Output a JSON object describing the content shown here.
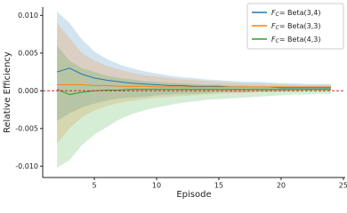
{
  "chart_data": {
    "type": "line",
    "xlabel": "Episode",
    "ylabel": "Relative Efficiency",
    "x": [
      2,
      3,
      4,
      5,
      6,
      7,
      8,
      9,
      10,
      11,
      12,
      13,
      14,
      15,
      16,
      17,
      18,
      19,
      20,
      21,
      22,
      23,
      24
    ],
    "series": [
      {
        "name": "FC= Beta(3,4)",
        "color": "#1f77b4",
        "values": [
          0.0025,
          0.003,
          0.0022,
          0.0017,
          0.0014,
          0.0012,
          0.001,
          0.0009,
          0.0008,
          0.0007,
          0.0007,
          0.0006,
          0.0006,
          0.0006,
          0.0005,
          0.0005,
          0.0005,
          0.0005,
          0.0004,
          0.0004,
          0.0004,
          0.0004,
          0.0004
        ],
        "upper": [
          0.0105,
          0.009,
          0.0068,
          0.0052,
          0.0042,
          0.0035,
          0.003,
          0.0026,
          0.0023,
          0.002,
          0.0018,
          0.0017,
          0.0015,
          0.0014,
          0.0013,
          0.0012,
          0.0012,
          0.0011,
          0.001,
          0.001,
          0.0009,
          0.0009,
          0.0009
        ],
        "lower": [
          -0.004,
          -0.003,
          -0.0022,
          -0.0017,
          -0.0013,
          -0.001,
          -0.0009,
          -0.0008,
          -0.0006,
          -0.0005,
          -0.0004,
          -0.0004,
          -0.0003,
          -0.0002,
          -0.0002,
          -0.0002,
          -0.0001,
          -0.0001,
          -0.0001,
          0,
          0,
          0,
          0
        ]
      },
      {
        "name": "FC= Beta(3,3)",
        "color": "#ff7f0e",
        "values": [
          0.0008,
          0.0008,
          0.0008,
          0.0007,
          0.0007,
          0.0006,
          0.0006,
          0.0006,
          0.0005,
          0.0005,
          0.0005,
          0.0005,
          0.0005,
          0.0005,
          0.0005,
          0.0005,
          0.0005,
          0.0005,
          0.0005,
          0.0005,
          0.0005,
          0.0005,
          0.0005
        ],
        "upper": [
          0.009,
          0.007,
          0.005,
          0.004,
          0.0033,
          0.0028,
          0.0024,
          0.0021,
          0.0019,
          0.0017,
          0.0015,
          0.0014,
          0.0013,
          0.0012,
          0.0011,
          0.001,
          0.001,
          0.0009,
          0.0009,
          0.0008,
          0.0008,
          0.0008,
          0.0008
        ],
        "lower": [
          -0.007,
          -0.005,
          -0.0035,
          -0.0026,
          -0.002,
          -0.0016,
          -0.0013,
          -0.0011,
          -0.0009,
          -0.0008,
          -0.0007,
          -0.0006,
          -0.0005,
          -0.0004,
          -0.0003,
          -0.0003,
          -0.0002,
          -0.0002,
          -0.0001,
          -0.0001,
          0,
          0,
          0
        ]
      },
      {
        "name": "FC= Beta(4,3)",
        "color": "#2ca02c",
        "values": [
          0.0002,
          -0.0005,
          -0.0002,
          0,
          0.0001,
          0.0001,
          0.0002,
          0.0002,
          0.0002,
          0.0002,
          0.0002,
          0.0002,
          0.0002,
          0.0002,
          0.0002,
          0.0002,
          0.0002,
          0.0002,
          0.0002,
          0.0002,
          0.0002,
          0.0002,
          0.0002
        ],
        "upper": [
          0.006,
          0.004,
          0.003,
          0.0025,
          0.002,
          0.0017,
          0.0015,
          0.0013,
          0.0012,
          0.0011,
          0.001,
          0.0009,
          0.0008,
          0.0008,
          0.0007,
          0.0007,
          0.0006,
          0.0006,
          0.0006,
          0.0005,
          0.0005,
          0.0005,
          0.0005
        ],
        "lower": [
          -0.0102,
          -0.0092,
          -0.0072,
          -0.0058,
          -0.0048,
          -0.0038,
          -0.0031,
          -0.0026,
          -0.0022,
          -0.0019,
          -0.0016,
          -0.0014,
          -0.0012,
          -0.0011,
          -0.001,
          -0.0009,
          -0.0008,
          -0.0007,
          -0.0006,
          -0.0005,
          -0.0005,
          -0.0004,
          -0.0004
        ]
      }
    ],
    "reference_line": {
      "value": 0,
      "color": "#d62728"
    },
    "xlim": [
      0.85,
      25.15
    ],
    "xticks": [
      5,
      10,
      15,
      20,
      25
    ],
    "ylim": [
      -0.0115,
      0.0111
    ],
    "yticks": [
      {
        "value": -0.01,
        "label": "-0.010"
      },
      {
        "value": -0.005,
        "label": "-0.005"
      },
      {
        "value": 0,
        "label": "0.000"
      },
      {
        "value": 0.005,
        "label": "0.005"
      },
      {
        "value": 0.01,
        "label": "0.010"
      }
    ],
    "legend": "upper right"
  }
}
